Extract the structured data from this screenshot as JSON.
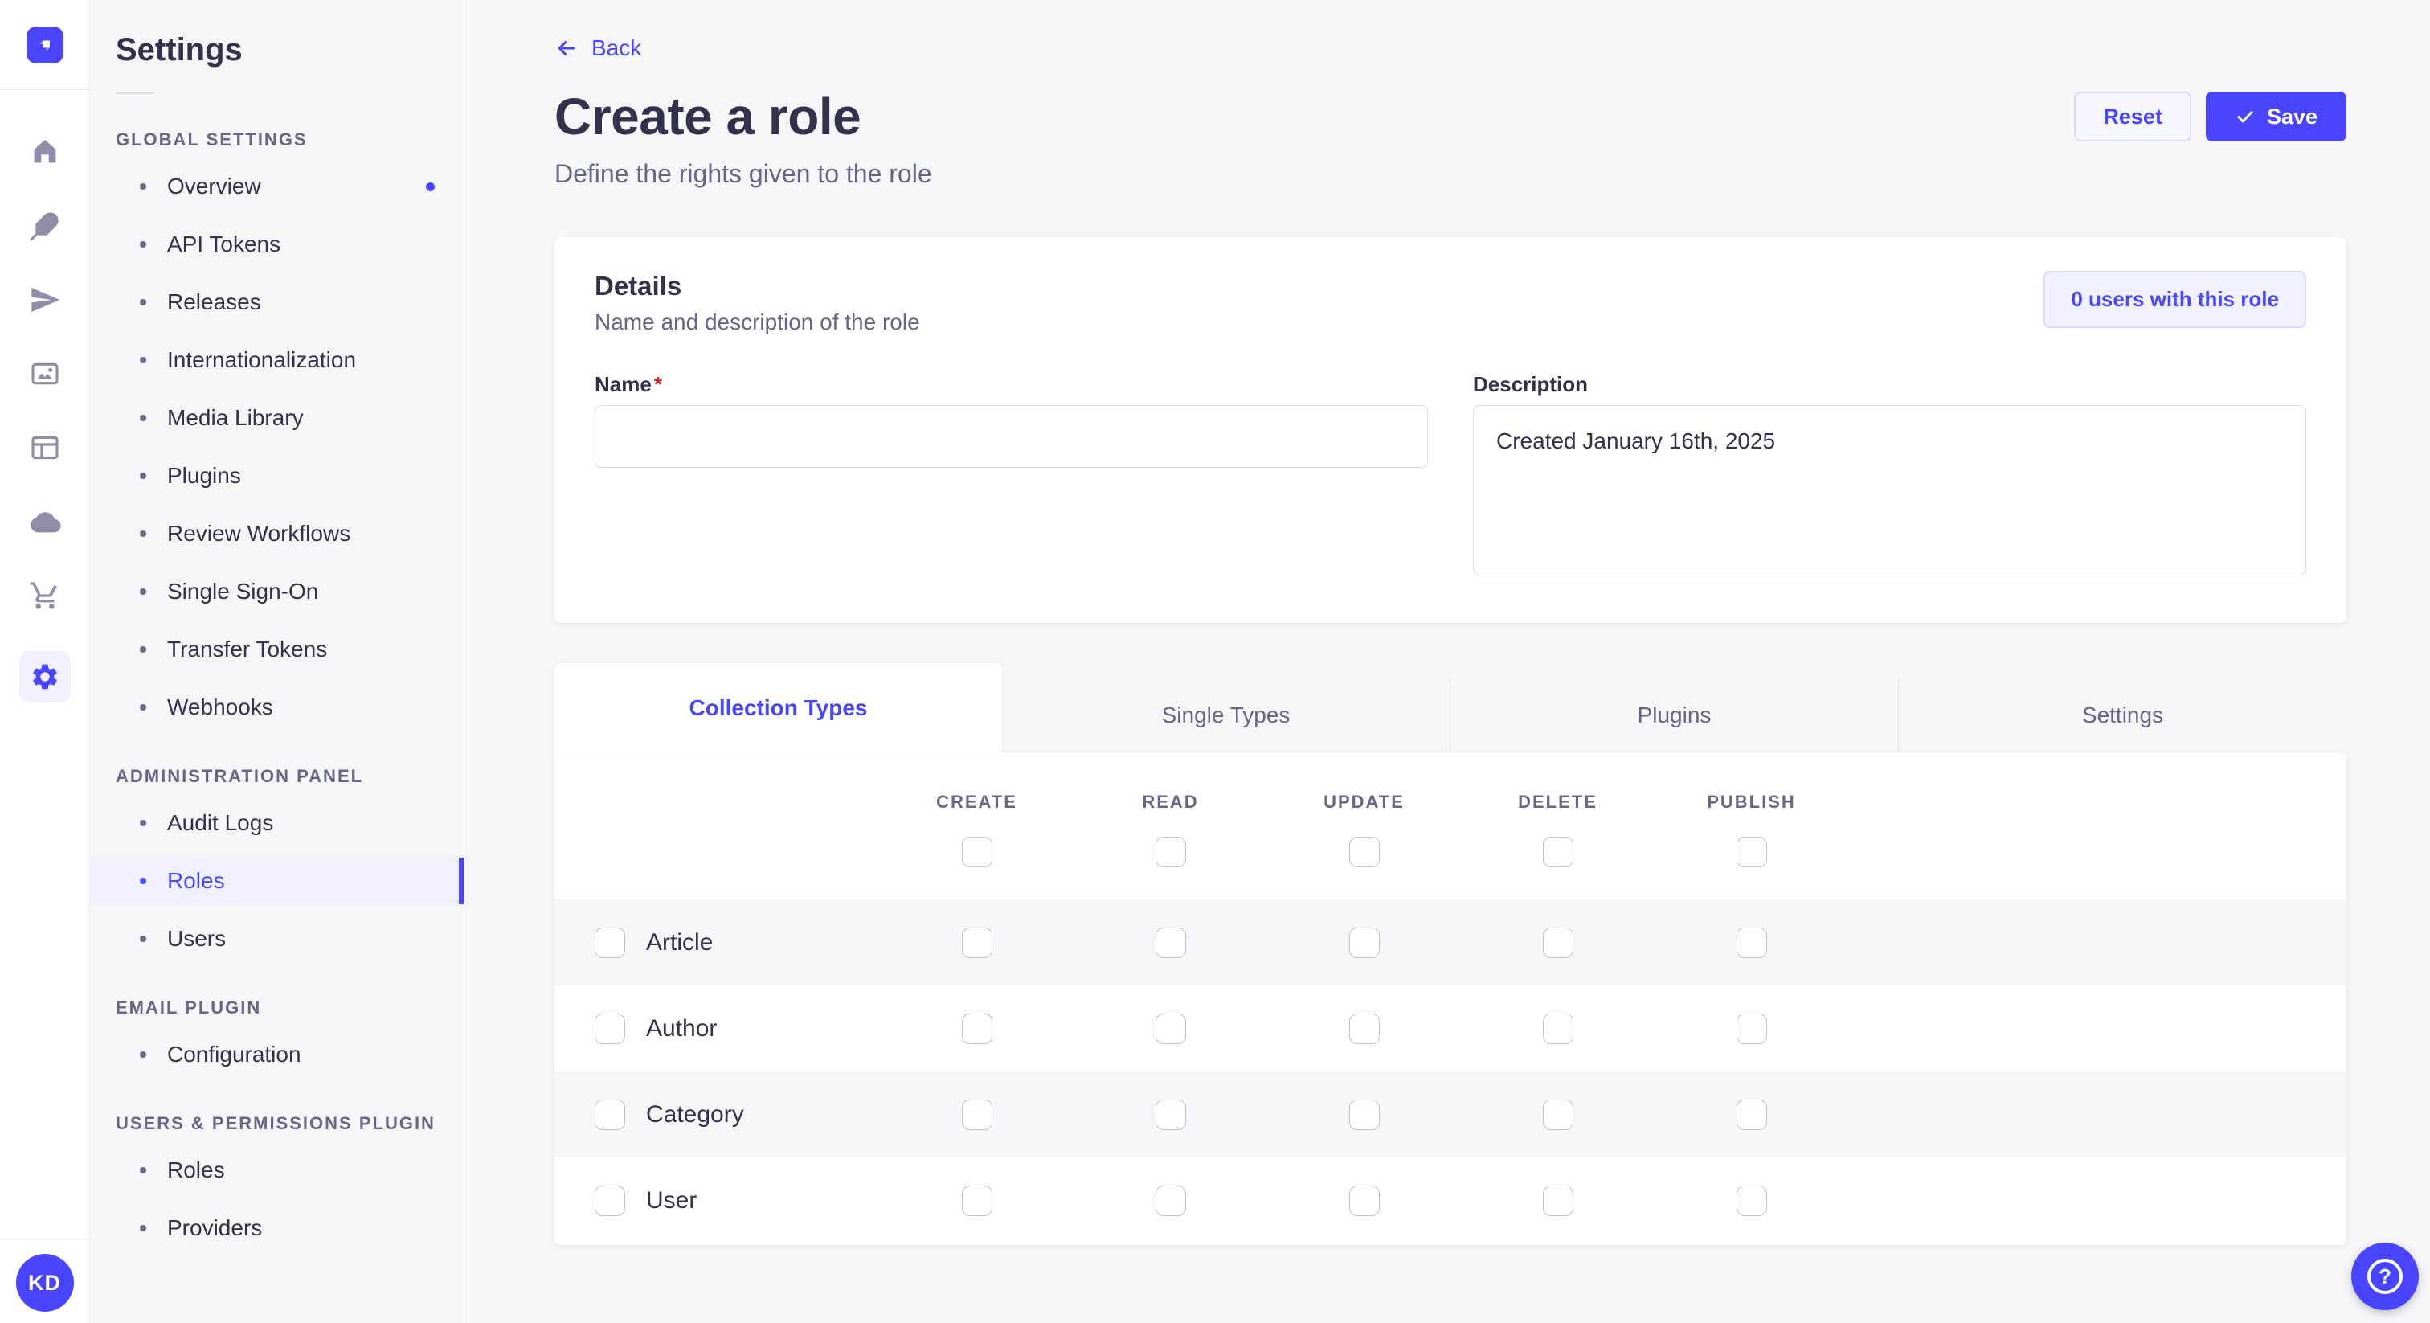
{
  "colors": {
    "primary": "#4945ff",
    "primary_light": "#f0f0ff",
    "primary_border": "#d9d8ff",
    "text": "#32324d",
    "muted": "#666687",
    "icon_gray": "#8e8ea9",
    "border": "#dcdce4",
    "surface": "#ffffff",
    "background": "#f6f6f9",
    "required_red": "#d02b20"
  },
  "glyphs": {
    "help": "?"
  },
  "rail": {
    "logo": "strapi-logo",
    "items": [
      {
        "icon": "home-icon"
      },
      {
        "icon": "feather-icon"
      },
      {
        "icon": "paper-plane-icon"
      },
      {
        "icon": "media-library-icon"
      },
      {
        "icon": "layout-icon"
      },
      {
        "icon": "cloud-icon"
      },
      {
        "icon": "cart-icon"
      },
      {
        "icon": "gear-icon",
        "active": true
      }
    ],
    "avatar_initials": "KD"
  },
  "subnav": {
    "title": "Settings",
    "sections": [
      {
        "label": "GLOBAL SETTINGS",
        "items": [
          {
            "label": "Overview",
            "notification": true
          },
          {
            "label": "API Tokens"
          },
          {
            "label": "Releases"
          },
          {
            "label": "Internationalization"
          },
          {
            "label": "Media Library"
          },
          {
            "label": "Plugins"
          },
          {
            "label": "Review Workflows"
          },
          {
            "label": "Single Sign-On"
          },
          {
            "label": "Transfer Tokens"
          },
          {
            "label": "Webhooks"
          }
        ]
      },
      {
        "label": "ADMINISTRATION PANEL",
        "items": [
          {
            "label": "Audit Logs"
          },
          {
            "label": "Roles",
            "active": true
          },
          {
            "label": "Users"
          }
        ]
      },
      {
        "label": "EMAIL PLUGIN",
        "items": [
          {
            "label": "Configuration"
          }
        ]
      },
      {
        "label": "USERS & PERMISSIONS PLUGIN",
        "items": [
          {
            "label": "Roles"
          },
          {
            "label": "Providers"
          }
        ]
      }
    ]
  },
  "header": {
    "back_label": "Back",
    "title": "Create a role",
    "subtitle": "Define the rights given to the role",
    "reset_label": "Reset",
    "save_label": "Save"
  },
  "details": {
    "title": "Details",
    "subtitle": "Name and description of the role",
    "users_badge": "0 users with this role",
    "name_label": "Name",
    "required_mark": "*",
    "name_value": "",
    "name_placeholder": "",
    "description_label": "Description",
    "description_value": "Created January 16th, 2025"
  },
  "permissions": {
    "tabs": [
      {
        "label": "Collection Types",
        "active": true
      },
      {
        "label": "Single Types"
      },
      {
        "label": "Plugins"
      },
      {
        "label": "Settings"
      }
    ],
    "columns": [
      "CREATE",
      "READ",
      "UPDATE",
      "DELETE",
      "PUBLISH"
    ],
    "rows": [
      {
        "name": "Article"
      },
      {
        "name": "Author"
      },
      {
        "name": "Category"
      },
      {
        "name": "User"
      }
    ],
    "all_unchecked": true
  }
}
